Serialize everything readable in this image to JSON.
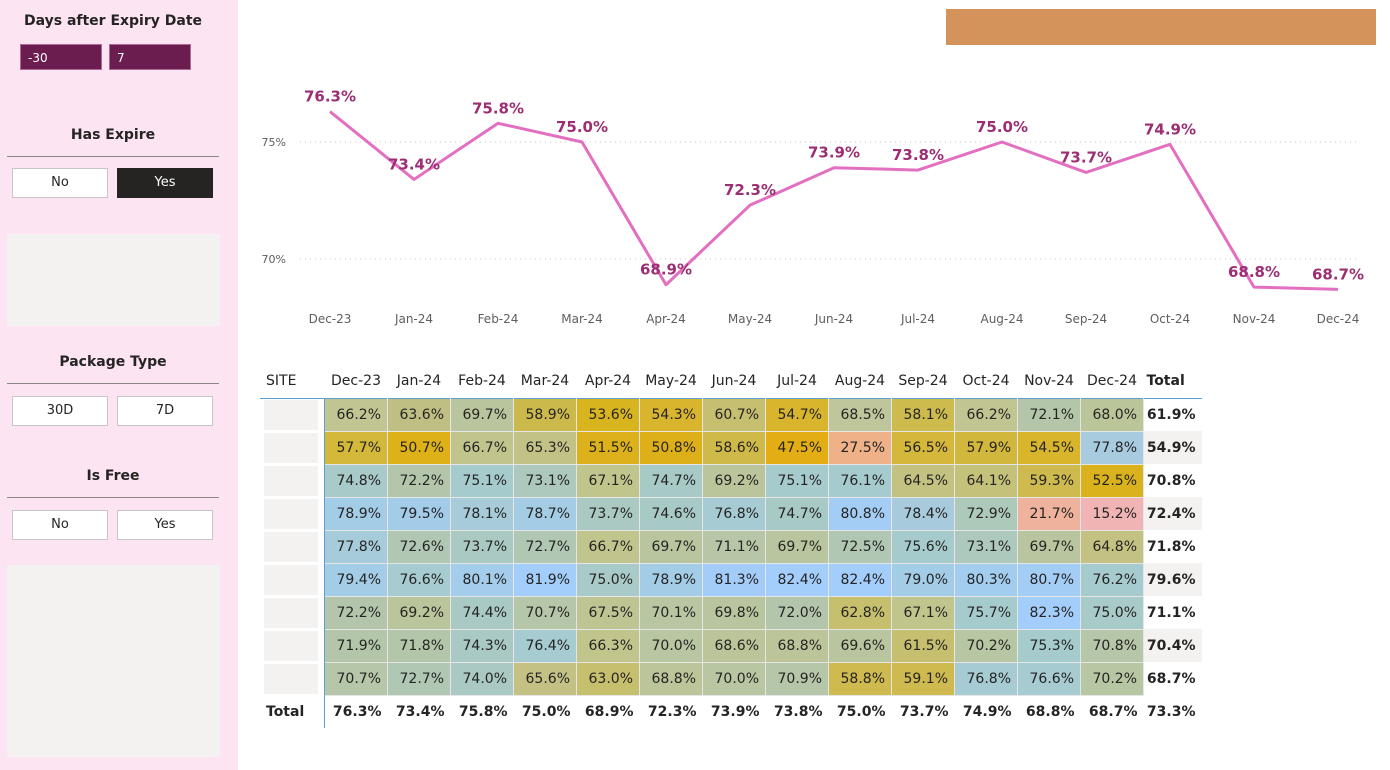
{
  "sidebar": {
    "days_after_expiry": {
      "title": "Days after Expiry Date",
      "from": "-30",
      "to": "7"
    },
    "has_expire": {
      "title": "Has Expire",
      "options": [
        "No",
        "Yes"
      ],
      "selected": "Yes"
    },
    "package_type": {
      "title": "Package Type",
      "options": [
        "30D",
        "7D"
      ]
    },
    "is_free": {
      "title": "Is Free",
      "options": [
        "No",
        "Yes"
      ]
    }
  },
  "colors": {
    "sidebar_bg": "#fce4f2",
    "banner": "#d4935a",
    "line": "#e36fc1",
    "data_label": "#9c2e73"
  },
  "chart_data": {
    "type": "line",
    "categories": [
      "Dec-23",
      "Jan-24",
      "Feb-24",
      "Mar-24",
      "Apr-24",
      "May-24",
      "Jun-24",
      "Jul-24",
      "Aug-24",
      "Sep-24",
      "Oct-24",
      "Nov-24",
      "Dec-24"
    ],
    "values": [
      76.3,
      73.4,
      75.8,
      75.0,
      68.9,
      72.3,
      73.9,
      73.8,
      75.0,
      73.7,
      74.9,
      68.8,
      68.7
    ],
    "labels": [
      "76.3%",
      "73.4%",
      "75.8%",
      "75.0%",
      "68.9%",
      "72.3%",
      "73.9%",
      "73.8%",
      "75.0%",
      "73.7%",
      "74.9%",
      "68.8%",
      "68.7%"
    ],
    "yticks": [
      {
        "value": 75,
        "label": "75%"
      },
      {
        "value": 70,
        "label": "70%"
      }
    ],
    "title": "",
    "xlabel": "",
    "ylabel": "",
    "grid": "dotted horizontal"
  },
  "matrix": {
    "site_header": "SITE",
    "months": [
      "Dec-23",
      "Jan-24",
      "Feb-24",
      "Mar-24",
      "Apr-24",
      "May-24",
      "Jun-24",
      "Jul-24",
      "Aug-24",
      "Sep-24",
      "Oct-24",
      "Nov-24",
      "Dec-24"
    ],
    "total_header": "Total",
    "rows": [
      {
        "cells": [
          "66.2%",
          "63.6%",
          "69.7%",
          "58.9%",
          "53.6%",
          "54.3%",
          "60.7%",
          "54.7%",
          "68.5%",
          "58.1%",
          "66.2%",
          "72.1%",
          "68.0%"
        ],
        "colors": [
          "#c1c592",
          "#bfbf84",
          "#b9c59c",
          "#cbba4b",
          "#d8b41f",
          "#d9b52e",
          "#c6bf70",
          "#d8b52c",
          "#bfc69c",
          "#cdbb4d",
          "#c1c592",
          "#b3c6a9",
          "#bbc59a"
        ],
        "total": "61.9%"
      },
      {
        "cells": [
          "57.7%",
          "50.7%",
          "66.7%",
          "65.3%",
          "51.5%",
          "50.8%",
          "58.6%",
          "47.5%",
          "27.5%",
          "56.5%",
          "57.9%",
          "54.5%",
          "77.8%"
        ],
        "colors": [
          "#d3b839",
          "#deb118",
          "#c1c58d",
          "#c3c286",
          "#dcb11b",
          "#ddb019",
          "#cfb949",
          "#e3ae13",
          "#eeb188",
          "#d5b73b",
          "#d1b83d",
          "#d8b52b",
          "#a8cbe0"
        ],
        "total": "54.9%"
      },
      {
        "cells": [
          "74.8%",
          "72.2%",
          "75.1%",
          "73.1%",
          "67.1%",
          "74.7%",
          "69.2%",
          "75.1%",
          "76.1%",
          "64.5%",
          "64.1%",
          "59.3%",
          "52.5%"
        ],
        "colors": [
          "#a8cac9",
          "#b3c6ac",
          "#a6cbcd",
          "#adc8bd",
          "#c0c58c",
          "#a8cac7",
          "#bac59c",
          "#a6cbcd",
          "#a6cbce",
          "#c3c281",
          "#c4c17a",
          "#ceba4e",
          "#dab21d"
        ],
        "total": "70.8%"
      },
      {
        "cells": [
          "78.9%",
          "79.5%",
          "78.1%",
          "78.7%",
          "73.7%",
          "74.6%",
          "76.8%",
          "74.7%",
          "80.8%",
          "78.4%",
          "72.9%",
          "21.7%",
          "15.2%"
        ],
        "colors": [
          "#a3cce6",
          "#a3cce9",
          "#a7cbd8",
          "#a4cce4",
          "#aac9c2",
          "#a8cac7",
          "#a7cbd2",
          "#a8cac7",
          "#a3cdf5",
          "#a7cbdc",
          "#adc9ba",
          "#eeb29d",
          "#f0b4b4"
        ],
        "total": "72.4%"
      },
      {
        "cells": [
          "77.8%",
          "72.6%",
          "73.7%",
          "72.7%",
          "66.7%",
          "69.7%",
          "71.1%",
          "69.7%",
          "72.5%",
          "75.6%",
          "73.1%",
          "69.7%",
          "64.8%"
        ],
        "colors": [
          "#a6cbda",
          "#b0c7b3",
          "#aac9c2",
          "#b0c7b4",
          "#c1c58d",
          "#b9c59e",
          "#b6c6a6",
          "#b9c59e",
          "#b0c7b4",
          "#a6cbcd",
          "#adc8bd",
          "#b9c59e",
          "#c3c282"
        ],
        "total": "71.8%"
      },
      {
        "cells": [
          "79.4%",
          "76.6%",
          "80.1%",
          "81.9%",
          "75.0%",
          "78.9%",
          "81.3%",
          "82.4%",
          "82.4%",
          "79.0%",
          "80.3%",
          "80.7%",
          "76.2%"
        ],
        "colors": [
          "#a3cce6",
          "#a6cbd0",
          "#a3cdeb",
          "#a3cdfa",
          "#a8cac9",
          "#a3cce6",
          "#a3cdf8",
          "#a3cdfb",
          "#a3cdfb",
          "#a3cce6",
          "#a3cdef",
          "#a3cdf5",
          "#a6cbcf"
        ],
        "total": "79.6%"
      },
      {
        "cells": [
          "72.2%",
          "69.2%",
          "74.4%",
          "70.7%",
          "67.5%",
          "70.1%",
          "69.8%",
          "72.0%",
          "62.8%",
          "67.1%",
          "75.7%",
          "82.3%",
          "75.0%"
        ],
        "colors": [
          "#b3c6ac",
          "#bac59c",
          "#a9c9c4",
          "#b6c6a8",
          "#bec593",
          "#b8c6a1",
          "#b9c59e",
          "#b3c6ac",
          "#c6bf6e",
          "#c0c58c",
          "#a6cbcd",
          "#a3cdfa",
          "#a8cac9"
        ],
        "total": "71.1%"
      },
      {
        "cells": [
          "71.9%",
          "71.8%",
          "74.3%",
          "76.4%",
          "66.3%",
          "70.0%",
          "68.6%",
          "68.8%",
          "69.6%",
          "61.5%",
          "70.2%",
          "75.3%",
          "70.8%"
        ],
        "colors": [
          "#b4c6aa",
          "#b4c6aa",
          "#a9c9c4",
          "#a6cbd0",
          "#c1c58c",
          "#b8c6a1",
          "#bcc599",
          "#bcc599",
          "#b9c59e",
          "#c6bf70",
          "#b7c6a3",
          "#a6cbcd",
          "#b6c6a8"
        ],
        "total": "70.4%"
      },
      {
        "cells": [
          "70.7%",
          "72.7%",
          "74.0%",
          "65.6%",
          "63.0%",
          "68.8%",
          "70.0%",
          "70.9%",
          "58.8%",
          "59.1%",
          "76.8%",
          "76.6%",
          "70.2%"
        ],
        "colors": [
          "#b6c6a8",
          "#b0c7b4",
          "#aac9c2",
          "#c3c284",
          "#c6bf6e",
          "#bcc599",
          "#b8c6a1",
          "#b6c6a8",
          "#ceba4e",
          "#ceba4e",
          "#a6cbd2",
          "#a6cbd0",
          "#b7c6a3"
        ],
        "total": "68.7%"
      }
    ],
    "total_row": {
      "label": "Total",
      "cells": [
        "76.3%",
        "73.4%",
        "75.8%",
        "75.0%",
        "68.9%",
        "72.3%",
        "73.9%",
        "73.8%",
        "75.0%",
        "73.7%",
        "74.9%",
        "68.8%",
        "68.7%"
      ],
      "total": "73.3%"
    }
  }
}
